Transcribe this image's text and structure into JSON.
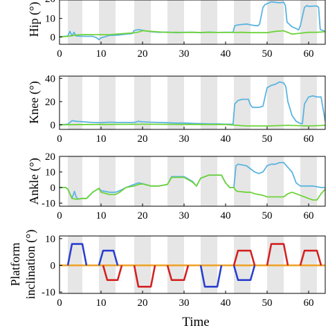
{
  "chart_data": [
    {
      "type": "line",
      "ylabel": "Hip (°)",
      "xlim": [
        0,
        64
      ],
      "ylim": [
        -4,
        20
      ],
      "xticks": [
        0,
        10,
        20,
        30,
        40,
        50,
        60
      ],
      "yticks": [
        0,
        10
      ],
      "yticks_partial": [
        "20"
      ],
      "shaded_intervals": [
        [
          2,
          5.5
        ],
        [
          9.5,
          13.5
        ],
        [
          18,
          22
        ],
        [
          26,
          30
        ],
        [
          34,
          38
        ],
        [
          42,
          46
        ],
        [
          50,
          54
        ],
        [
          58,
          62
        ]
      ],
      "series": [
        {
          "color": "#5ab4e0",
          "x": [
            0,
            2,
            2.5,
            3,
            3.5,
            4,
            6,
            8,
            9,
            9.5,
            10,
            12,
            14,
            16,
            17.5,
            18,
            19,
            22,
            24,
            26,
            28,
            30,
            32,
            34,
            36,
            38,
            40,
            41.8,
            42.2,
            43,
            45,
            45.5,
            46,
            47,
            47.8,
            48.2,
            49,
            49.5,
            50,
            51,
            53,
            54,
            54.4,
            54.8,
            56,
            57,
            57.6,
            58,
            59,
            59.6,
            60,
            62,
            62.4,
            62.8,
            64
          ],
          "y": [
            0,
            0.5,
            3,
            0.5,
            2.5,
            0.5,
            0.3,
            0.3,
            -0.5,
            -1.5,
            -0.5,
            0.8,
            1,
            1.5,
            1.8,
            3.5,
            4,
            2.8,
            2.5,
            2.6,
            2.3,
            2.5,
            2.5,
            2.3,
            2.6,
            2.4,
            2.5,
            2.5,
            6,
            6.5,
            7,
            6.8,
            6.5,
            6.2,
            6,
            7,
            16,
            17.5,
            18,
            19,
            18.5,
            18.8,
            17,
            8,
            5.5,
            4.5,
            3.8,
            6,
            16,
            17,
            16.5,
            16.8,
            16,
            4,
            3
          ]
        },
        {
          "color": "#6ed33a",
          "x": [
            0,
            2,
            4,
            6,
            8,
            10,
            12,
            14,
            16,
            18,
            19,
            20,
            22,
            24,
            26,
            28,
            30,
            32,
            34,
            36,
            38,
            40,
            42,
            44,
            46,
            48,
            50,
            52,
            54,
            56,
            58,
            60,
            62,
            64
          ],
          "y": [
            0,
            0.3,
            1,
            1.3,
            1.2,
            1.2,
            1.2,
            1.6,
            1.9,
            2.2,
            2.6,
            3.4,
            3,
            2.7,
            2.4,
            2.5,
            2.4,
            2.5,
            2.4,
            2.5,
            2.4,
            2.4,
            2.4,
            2.5,
            2.3,
            2.3,
            2.3,
            3,
            3.3,
            1.5,
            2,
            2.5,
            2.5,
            2.8
          ]
        }
      ]
    },
    {
      "type": "line",
      "ylabel": "Knee (°)",
      "xlim": [
        0,
        64
      ],
      "ylim": [
        -4,
        42
      ],
      "xticks": [
        0,
        10,
        20,
        30,
        40,
        50,
        60
      ],
      "yticks": [
        0,
        20,
        40
      ],
      "shaded_intervals": [
        [
          2,
          5.5
        ],
        [
          9.5,
          13.5
        ],
        [
          18,
          22
        ],
        [
          26,
          30
        ],
        [
          34,
          38
        ],
        [
          42,
          46
        ],
        [
          50,
          54
        ],
        [
          58,
          62
        ]
      ],
      "series": [
        {
          "color": "#5ab4e0",
          "x": [
            0,
            2,
            3,
            4,
            6,
            8,
            10,
            12,
            14,
            16,
            18,
            19,
            20,
            22,
            24,
            26,
            28,
            30,
            32,
            34,
            36,
            38,
            40,
            41.8,
            42.2,
            43,
            44,
            45.5,
            46,
            46.5,
            47,
            48,
            49,
            50,
            51,
            52,
            53,
            54,
            54.5,
            55,
            56,
            57,
            58,
            58.5,
            59,
            60,
            61,
            62,
            63,
            64
          ],
          "y": [
            0,
            0.5,
            3.5,
            3,
            2.5,
            2,
            1.8,
            2.3,
            2,
            2,
            2,
            3,
            2.5,
            2.2,
            2,
            1.8,
            1.5,
            1.5,
            1.2,
            1,
            0.8,
            0.8,
            0.5,
            0.5,
            18,
            21,
            22,
            22,
            17,
            15,
            15,
            15,
            16,
            32,
            34,
            35,
            37,
            36,
            33,
            20,
            8,
            3,
            1,
            1,
            18,
            24,
            25,
            24,
            24,
            3
          ]
        },
        {
          "color": "#6ed33a",
          "x": [
            0,
            10,
            20,
            30,
            40,
            45,
            50,
            55,
            60,
            64
          ],
          "y": [
            0,
            0.3,
            0.5,
            0.3,
            0.2,
            -1,
            -1,
            -0.5,
            -1,
            -0.5
          ]
        }
      ]
    },
    {
      "type": "line",
      "ylabel": "Ankle (°)",
      "xlim": [
        0,
        64
      ],
      "ylim": [
        -12,
        20
      ],
      "xticks": [
        0,
        10,
        20,
        30,
        40,
        50,
        60
      ],
      "yticks": [
        -10,
        0,
        10,
        20
      ],
      "shaded_intervals": [
        [
          2,
          5.5
        ],
        [
          9.5,
          13.5
        ],
        [
          18,
          22
        ],
        [
          26,
          30
        ],
        [
          34,
          38
        ],
        [
          42,
          46
        ],
        [
          50,
          54
        ],
        [
          58,
          62
        ]
      ],
      "series": [
        {
          "color": "#5ab4e0",
          "x": [
            0,
            1.5,
            2,
            3,
            3.6,
            4,
            4.5,
            5.5,
            6.5,
            8,
            9.5,
            10,
            12,
            13.5,
            14.5,
            16,
            18,
            19,
            20,
            22,
            24,
            26,
            27,
            28,
            30,
            32,
            33,
            34,
            36,
            38,
            39,
            40,
            41,
            42,
            42.5,
            43,
            45,
            46,
            47,
            48,
            49,
            50,
            51,
            52,
            53,
            54,
            55,
            56,
            57,
            58,
            59,
            60,
            61,
            62,
            63,
            64
          ],
          "y": [
            0,
            0,
            -1,
            -7,
            -2.5,
            -6,
            -7.5,
            -7,
            -7,
            -3,
            -0.5,
            -2,
            -3,
            -3,
            -2,
            0,
            2,
            3,
            2.5,
            1,
            1,
            2,
            7,
            7,
            7,
            4,
            1,
            6,
            8,
            8,
            8,
            3,
            0,
            0,
            14,
            15,
            14,
            12,
            10,
            9,
            10,
            14,
            15,
            15,
            16,
            16,
            13,
            10,
            3,
            1,
            1,
            1,
            1,
            0.5,
            0,
            0
          ]
        },
        {
          "color": "#6ed33a",
          "x": [
            0,
            1.5,
            2,
            3,
            4,
            5.5,
            6.5,
            8,
            9.5,
            10,
            12,
            13.5,
            14.5,
            16,
            18,
            19,
            20,
            22,
            24,
            26,
            27,
            28,
            30,
            32,
            33,
            34,
            36,
            38,
            39,
            40,
            41,
            42,
            42.5,
            43,
            45,
            46,
            47,
            48,
            49,
            50,
            52,
            54,
            55,
            56,
            57,
            58,
            59,
            60,
            61,
            62,
            63,
            64
          ],
          "y": [
            0,
            0,
            -1,
            -7,
            -7.5,
            -7,
            -7,
            -3,
            -0.5,
            -3,
            -4.5,
            -4.5,
            -3,
            0,
            1,
            2,
            2.3,
            1,
            1,
            2,
            6.5,
            6.5,
            6.5,
            3.5,
            1,
            6,
            8,
            8,
            8,
            3,
            0,
            0,
            -2,
            -2.5,
            -3,
            -3,
            -4,
            -4.5,
            -5,
            -6,
            -6,
            -6,
            -4,
            -3,
            -4,
            -5,
            -6,
            -7,
            -8,
            -8,
            -4,
            -1
          ]
        }
      ]
    },
    {
      "type": "line",
      "ylabel_line1": "Platform",
      "ylabel_line2": "inclination (°)",
      "xlabel": "Time",
      "xlim": [
        0,
        64
      ],
      "ylim": [
        -10.5,
        11
      ],
      "xticks": [
        0,
        10,
        20,
        30,
        40,
        50,
        60
      ],
      "yticks": [
        -10,
        0,
        10
      ],
      "shaded_intervals": [
        [
          2,
          5.5
        ],
        [
          9.5,
          13.5
        ],
        [
          18,
          22
        ],
        [
          26,
          30
        ],
        [
          34,
          38
        ],
        [
          42,
          46
        ],
        [
          50,
          54
        ],
        [
          58,
          62
        ]
      ],
      "series": [
        {
          "color": "#f0a020",
          "x": [
            0,
            64
          ],
          "y": [
            0,
            0
          ]
        },
        {
          "color": "#2a3fcf",
          "segments": [
            {
              "x": [
                2,
                3,
                5.5,
                6.5
              ],
              "y": [
                0,
                8,
                8,
                0
              ]
            },
            {
              "x": [
                9.5,
                10.5,
                13,
                14
              ],
              "y": [
                0,
                5.5,
                5.5,
                0
              ]
            },
            {
              "x": [
                34,
                35,
                38,
                39
              ],
              "y": [
                0,
                -8,
                -8,
                0
              ]
            },
            {
              "x": [
                42,
                43,
                46,
                47
              ],
              "y": [
                0,
                -5.5,
                -5.5,
                0
              ]
            }
          ]
        },
        {
          "color": "#d42020",
          "segments": [
            {
              "x": [
                10.5,
                11.5,
                14,
                15
              ],
              "y": [
                0,
                -5.5,
                -5.5,
                0
              ]
            },
            {
              "x": [
                18,
                19,
                22,
                23
              ],
              "y": [
                0,
                -8,
                -8,
                0
              ]
            },
            {
              "x": [
                26,
                27,
                30,
                31
              ],
              "y": [
                0,
                -5.5,
                -5.5,
                0
              ]
            },
            {
              "x": [
                42,
                43,
                46,
                47
              ],
              "y": [
                0,
                5.5,
                5.5,
                0
              ]
            },
            {
              "x": [
                50,
                51,
                54,
                55
              ],
              "y": [
                0,
                8,
                8,
                0
              ]
            },
            {
              "x": [
                58,
                59,
                62,
                63
              ],
              "y": [
                0,
                5.5,
                5.5,
                0
              ]
            }
          ]
        }
      ]
    }
  ]
}
